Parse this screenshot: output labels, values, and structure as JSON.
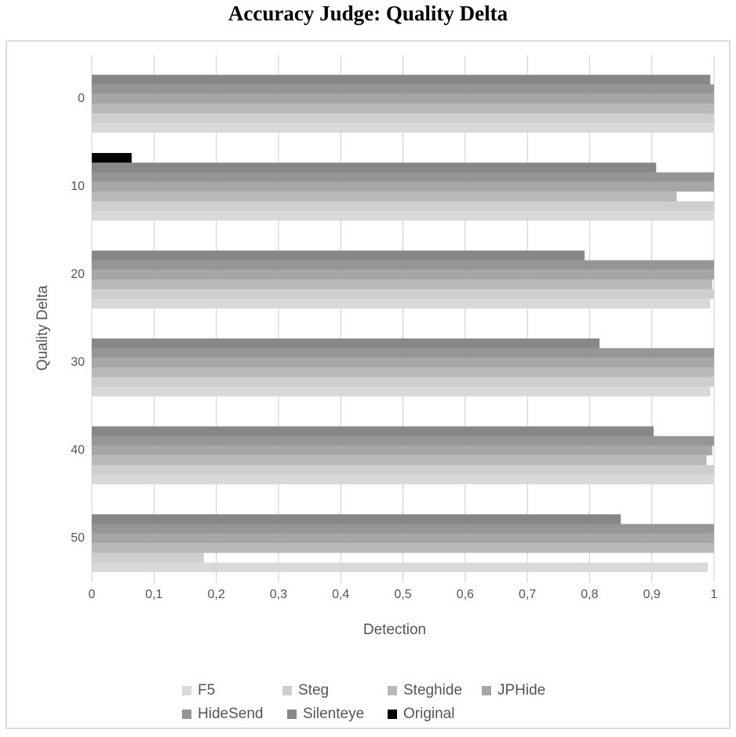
{
  "chart_data": {
    "type": "bar",
    "orientation": "horizontal",
    "title": "Accuracy Judge: Quality Delta",
    "x_label": "Detection",
    "y_label": "Quality Delta",
    "categories": [
      "0",
      "10",
      "20",
      "30",
      "40",
      "50"
    ],
    "series": [
      {
        "name": "F5",
        "color": "#d9d9d9",
        "values": [
          1,
          1,
          0.994,
          0.994,
          1,
          0.99
        ]
      },
      {
        "name": "Steg",
        "color": "#cecece",
        "values": [
          1,
          1,
          1,
          1,
          1,
          0.18
        ]
      },
      {
        "name": "Steghide",
        "color": "#b8b8b8",
        "values": [
          1,
          0.94,
          0.997,
          1,
          0.988,
          1
        ]
      },
      {
        "name": "JPHide",
        "color": "#a6a6a6",
        "values": [
          1,
          1,
          1,
          1,
          0.997,
          1
        ]
      },
      {
        "name": "HideSend",
        "color": "#969696",
        "values": [
          1,
          1,
          1,
          1,
          1,
          1
        ]
      },
      {
        "name": "Silenteye",
        "color": "#878787",
        "values": [
          0.994,
          0.907,
          0.792,
          0.816,
          0.903,
          0.85
        ]
      },
      {
        "name": "Original",
        "color": "#000000",
        "values": [
          0,
          0.064,
          0,
          0,
          0,
          0
        ]
      }
    ],
    "xlim": [
      0,
      1
    ],
    "xticks": [
      0,
      {
        "value": 0.1,
        "label": "0,1"
      },
      {
        "value": 0.2,
        "label": "0,2"
      },
      {
        "value": 0.3,
        "label": "0,3"
      },
      {
        "value": 0.4,
        "label": "0,4"
      },
      {
        "value": 0.5,
        "label": "0,5"
      },
      {
        "value": 0.6,
        "label": "0,6"
      },
      {
        "value": 0.7,
        "label": "0,7"
      },
      {
        "value": 0.8,
        "label": "0,8"
      },
      {
        "value": 0.9,
        "label": "0,9"
      },
      1
    ],
    "grid": true,
    "legend": "bottom"
  }
}
